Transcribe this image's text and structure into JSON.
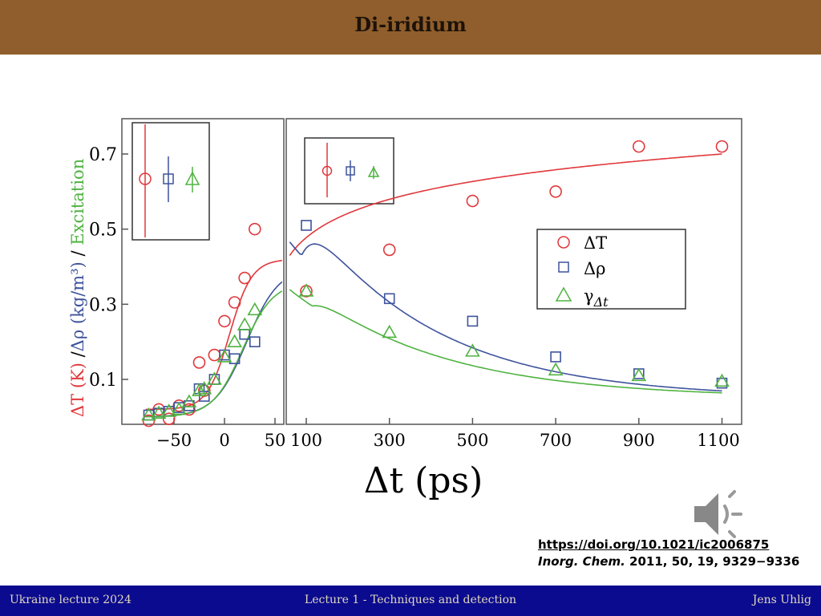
{
  "header": {
    "title": "Di-iridium"
  },
  "footer": {
    "left": "Ukraine lecture 2024",
    "center": "Lecture 1 - Techniques and detection",
    "right": "Jens Uhlig"
  },
  "reference": {
    "doi": "https://doi.org/10.1021/ic2006875",
    "journal": "Inorg. Chem.",
    "details": "2011, 50, 19, 9329−9336"
  },
  "icons": {
    "audio": "speaker-icon"
  },
  "colors": {
    "header": "#8f5e2c",
    "footer": "#0a0b8e",
    "dT": "#e0383c",
    "drho": "#3e539c",
    "gamma": "#4fb340"
  },
  "chart_data": {
    "type": "scatter",
    "xlabel": "Δt (ps)",
    "ylabel_parts": {
      "dT": "ΔT (K)",
      "sep1": " /",
      "drho": "Δρ (kg/m³)",
      "sep2": " / ",
      "exc": "Excitation"
    },
    "yticks": [
      "0.1",
      "0.3",
      "0.5",
      "0.7"
    ],
    "left_panel": {
      "xlim": [
        -80,
        50
      ],
      "xticks": [
        "−50",
        "0",
        "50"
      ],
      "series": [
        {
          "key": "dT",
          "x": [
            -75,
            -65,
            -55,
            -45,
            -35,
            -25,
            -20,
            -10,
            0,
            10,
            20,
            30
          ],
          "y": [
            -0.01,
            0.02,
            -0.005,
            0.03,
            0.02,
            0.145,
            0.07,
            0.165,
            0.255,
            0.305,
            0.37,
            0.5
          ]
        },
        {
          "key": "drho",
          "x": [
            -75,
            -65,
            -55,
            -45,
            -35,
            -25,
            -20,
            -10,
            0,
            10,
            20,
            30
          ],
          "y": [
            0.005,
            0.01,
            0.015,
            0.025,
            0.03,
            0.075,
            0.055,
            0.1,
            0.165,
            0.155,
            0.22,
            0.2
          ]
        },
        {
          "key": "gamma",
          "x": [
            -75,
            -65,
            -55,
            -45,
            -35,
            -25,
            -20,
            -10,
            0,
            10,
            20,
            30
          ],
          "y": [
            0.005,
            0.01,
            0.015,
            0.02,
            0.04,
            0.07,
            0.075,
            0.1,
            0.16,
            0.2,
            0.245,
            0.285
          ]
        }
      ]
    },
    "right_panel": {
      "xlim": [
        100,
        1100
      ],
      "xticks": [
        "100",
        "300",
        "500",
        "700",
        "900",
        "1100"
      ],
      "series": [
        {
          "key": "dT",
          "x": [
            100,
            300,
            500,
            700,
            900,
            1100
          ],
          "y": [
            0.335,
            0.445,
            0.575,
            0.6,
            0.72,
            0.72
          ]
        },
        {
          "key": "drho",
          "x": [
            100,
            300,
            500,
            700,
            900,
            1100
          ],
          "y": [
            0.51,
            0.315,
            0.255,
            0.16,
            0.115,
            0.09
          ]
        },
        {
          "key": "gamma",
          "x": [
            100,
            300,
            500,
            700,
            900,
            1100
          ],
          "y": [
            0.335,
            0.225,
            0.175,
            0.125,
            0.11,
            0.095
          ]
        }
      ]
    },
    "legend": [
      {
        "key": "dT",
        "label": "ΔT",
        "marker": "circle"
      },
      {
        "key": "drho",
        "label": "Δρ",
        "marker": "square"
      },
      {
        "key": "gamma",
        "label": "γ",
        "sub": "Δt",
        "marker": "triangle"
      }
    ],
    "grid": false,
    "legend_position": "right-middle"
  }
}
